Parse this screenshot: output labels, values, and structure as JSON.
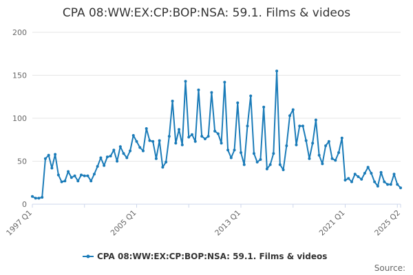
{
  "chart_data": {
    "type": "line",
    "title": "CPA 08:WW:EX:CP:BOP:NSA: 59.1. Films & videos",
    "xlabel": "",
    "ylabel": "",
    "ylim": [
      0,
      200
    ],
    "y_ticks": [
      0,
      50,
      100,
      150,
      200
    ],
    "x_tick_labels": [
      "1997 Q1",
      "2005 Q1",
      "2013 Q1",
      "2021 Q1",
      "2025 Q2"
    ],
    "x_start": "1997 Q1",
    "x_end": "2025 Q2",
    "legend": "bottom-center",
    "grid": "horizontal",
    "colors": {
      "series": "#1a7bb8",
      "grid": "#e6e6e6",
      "axis": "#ccd6eb"
    },
    "series": [
      {
        "name": "CPA 08:WW:EX:CP:BOP:NSA: 59.1. Films & videos",
        "values": [
          9,
          7,
          7,
          8,
          53,
          57,
          42,
          58,
          34,
          26,
          27,
          38,
          31,
          33,
          27,
          34,
          33,
          33,
          27,
          35,
          44,
          54,
          45,
          55,
          56,
          63,
          50,
          67,
          59,
          54,
          62,
          80,
          73,
          66,
          62,
          88,
          74,
          73,
          53,
          74,
          43,
          49,
          79,
          120,
          71,
          87,
          69,
          143,
          78,
          81,
          73,
          133,
          79,
          76,
          79,
          130,
          85,
          82,
          71,
          142,
          63,
          54,
          63,
          118,
          60,
          46,
          91,
          126,
          59,
          49,
          52,
          113,
          41,
          46,
          59,
          155,
          46,
          40,
          68,
          103,
          110,
          69,
          91,
          91,
          74,
          53,
          71,
          98,
          57,
          47,
          68,
          73,
          53,
          51,
          60,
          77,
          28,
          30,
          26,
          35,
          32,
          29,
          36,
          43,
          36,
          26,
          21,
          37,
          26,
          23,
          23,
          35,
          23,
          19
        ]
      }
    ]
  },
  "legend_label": "CPA 08:WW:EX:CP:BOP:NSA: 59.1. Films & videos",
  "source_label": "Source:"
}
